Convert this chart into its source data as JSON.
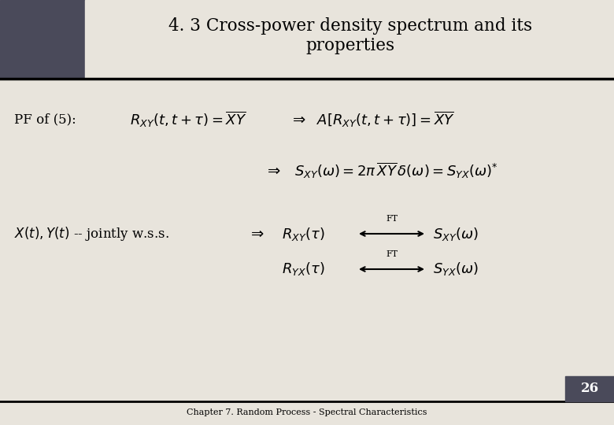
{
  "title_line1": "4. 3 Cross-power density spectrum and its",
  "title_line2": "properties",
  "background_color": "#e8e4dc",
  "dark_rect_color": "#4a4a5a",
  "footer_text": "Chapter 7. Random Process - Spectral Characteristics",
  "page_number": "26"
}
